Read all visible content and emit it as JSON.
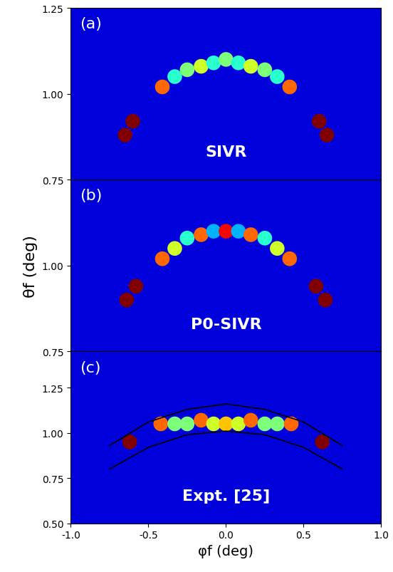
{
  "chart_data": [
    {
      "type": "scatter",
      "panel_label": "(a)",
      "annotation": "SIVR",
      "xlim": [
        -1.0,
        1.0
      ],
      "ylim": [
        0.75,
        1.25
      ],
      "yticks": [
        {
          "value": 0.75,
          "label": "0.75"
        },
        {
          "value": 1.0,
          "label": "1.00"
        },
        {
          "value": 1.25,
          "label": "1.25"
        }
      ],
      "tick_labels": "y",
      "intensity_range": [
        0,
        1
      ],
      "series": [
        {
          "type": "scatter",
          "marker": "o",
          "x": [
            -0.65,
            -0.6,
            -0.41,
            -0.33,
            -0.25,
            -0.16,
            -0.08,
            0.0,
            0.08,
            0.16,
            0.25,
            0.33,
            0.41,
            0.6,
            0.65
          ],
          "values": [
            0.88,
            0.92,
            1.02,
            1.05,
            1.07,
            1.08,
            1.09,
            1.1,
            1.09,
            1.08,
            1.07,
            1.05,
            1.02,
            0.92,
            0.88
          ],
          "intensity": [
            1.0,
            1.0,
            0.8,
            0.4,
            0.5,
            0.6,
            0.4,
            0.5,
            0.4,
            0.6,
            0.5,
            0.4,
            0.8,
            1.0,
            1.0
          ]
        }
      ]
    },
    {
      "type": "scatter",
      "panel_label": "(b)",
      "annotation": "P0-SIVR",
      "ylabel": "θf (deg)",
      "xlim": [
        -1.0,
        1.0
      ],
      "ylim": [
        0.75,
        1.25
      ],
      "yticks": [
        {
          "value": 0.75,
          "label": "0.75"
        },
        {
          "value": 1.0,
          "label": "1.00"
        }
      ],
      "tick_labels": "y",
      "intensity_range": [
        0,
        1
      ],
      "series": [
        {
          "type": "scatter",
          "marker": "o",
          "x": [
            -0.64,
            -0.58,
            -0.41,
            -0.33,
            -0.25,
            -0.16,
            -0.08,
            0.0,
            0.08,
            0.16,
            0.25,
            0.33,
            0.41,
            0.58,
            0.64
          ],
          "values": [
            0.9,
            0.94,
            1.02,
            1.05,
            1.08,
            1.09,
            1.1,
            1.1,
            1.1,
            1.09,
            1.08,
            1.05,
            1.02,
            0.94,
            0.9
          ],
          "intensity": [
            1.0,
            1.0,
            0.8,
            0.6,
            0.4,
            0.8,
            0.3,
            0.9,
            0.3,
            0.8,
            0.4,
            0.6,
            0.8,
            1.0,
            1.0
          ]
        }
      ]
    },
    {
      "type": "scatter",
      "panel_label": "(c)",
      "annotation": "Expt. [25]",
      "xlabel": "φf (deg)",
      "xlim": [
        -1.0,
        1.0
      ],
      "xticks": [
        {
          "value": -1.0,
          "label": "-1.0"
        },
        {
          "value": -0.5,
          "label": "-0.5"
        },
        {
          "value": 0.0,
          "label": "0.0"
        },
        {
          "value": 0.5,
          "label": "0.5"
        },
        {
          "value": 1.0,
          "label": "1.0"
        }
      ],
      "ylim": [
        0.5,
        1.45
      ],
      "yticks": [
        {
          "value": 0.5,
          "label": "0.50"
        },
        {
          "value": 0.75,
          "label": "0.75"
        },
        {
          "value": 1.0,
          "label": "1.00"
        },
        {
          "value": 1.25,
          "label": "1.25"
        }
      ],
      "intensity_range": [
        0,
        1
      ],
      "series": [
        {
          "type": "scatter",
          "marker": "o",
          "x": [
            -0.62,
            -0.42,
            -0.33,
            -0.25,
            -0.16,
            -0.08,
            0.0,
            0.08,
            0.16,
            0.25,
            0.33,
            0.42,
            0.62
          ],
          "values": [
            0.95,
            1.05,
            1.05,
            1.05,
            1.07,
            1.05,
            1.05,
            1.05,
            1.07,
            1.05,
            1.05,
            1.05,
            0.95
          ],
          "intensity": [
            1.0,
            0.8,
            0.5,
            0.5,
            0.8,
            0.6,
            0.7,
            0.6,
            0.8,
            0.5,
            0.5,
            0.8,
            1.0
          ]
        },
        {
          "type": "line",
          "color": "#000000",
          "line_style": "solid",
          "x": [
            -0.75,
            -0.5,
            -0.25,
            0.0,
            0.25,
            0.5,
            0.75
          ],
          "values": [
            0.93,
            1.06,
            1.13,
            1.16,
            1.13,
            1.06,
            0.93
          ]
        },
        {
          "type": "line",
          "color": "#000000",
          "line_style": "solid",
          "x": [
            -0.75,
            -0.5,
            -0.25,
            0.0,
            0.25,
            0.5,
            0.75
          ],
          "values": [
            0.8,
            0.92,
            0.99,
            1.01,
            0.99,
            0.92,
            0.8
          ]
        }
      ]
    }
  ]
}
